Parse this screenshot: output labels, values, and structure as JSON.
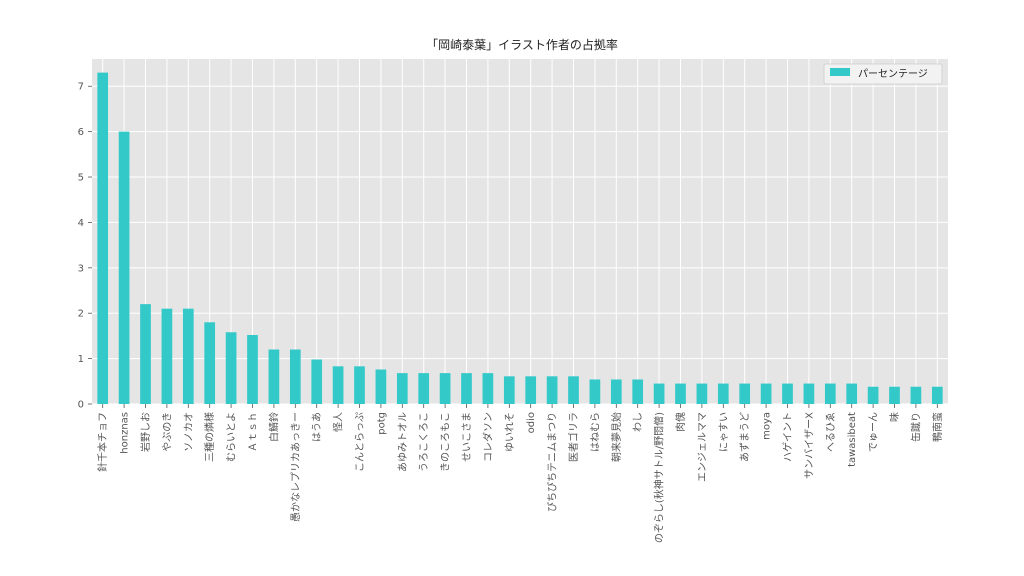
{
  "chart_data": {
    "type": "bar",
    "title": "「岡崎泰葉」イラスト作者の占拠率",
    "xlabel": "",
    "ylabel": "",
    "ylim": [
      0,
      7.6
    ],
    "yticks": [
      0,
      1,
      2,
      3,
      4,
      5,
      6,
      7
    ],
    "grid": true,
    "legend_position": "top-right",
    "colors": {
      "bar": "#33c9c9",
      "plot_bg": "#e5e5e5",
      "grid": "#ffffff"
    },
    "categories": [
      "針千本チョフ",
      "honznas",
      "岩野しお",
      "やぶのき",
      "ソノカオ",
      "三種の燐様",
      "むらいとよ",
      "Ａｔｓｈ",
      "白鯖鈴",
      "愚かなレプリカあっきー",
      "はうあ",
      "怪人",
      "こんとらっぷ",
      "potg",
      "あゆみトオル",
      "うろこくろこ",
      "きのころもこ",
      "せいこさま",
      "コレダソン",
      "ゆいれそ",
      "odio",
      "ぴちぴちテニムまつり",
      "医者ゴリラ",
      "はねむら",
      "朝来夢見始",
      "わし",
      "のぞらし(秋神サトル/野悶僧)",
      "肉傀",
      "エンジェルママ",
      "にゃすい",
      "あずまうど",
      "moya",
      "ハゲイント",
      "サンバイザーX",
      "へるひゑ",
      "tawasibeat",
      "でゅーん",
      "味",
      "缶蹴り",
      "鴨南蛮"
    ],
    "series": [
      {
        "name": "パーセンテージ",
        "values": [
          7.3,
          6.0,
          2.2,
          2.1,
          2.1,
          1.8,
          1.58,
          1.52,
          1.2,
          1.2,
          0.98,
          0.83,
          0.83,
          0.76,
          0.68,
          0.68,
          0.68,
          0.68,
          0.68,
          0.61,
          0.61,
          0.61,
          0.61,
          0.54,
          0.54,
          0.54,
          0.45,
          0.45,
          0.45,
          0.45,
          0.45,
          0.45,
          0.45,
          0.45,
          0.45,
          0.45,
          0.38,
          0.38,
          0.38,
          0.38
        ]
      }
    ]
  }
}
